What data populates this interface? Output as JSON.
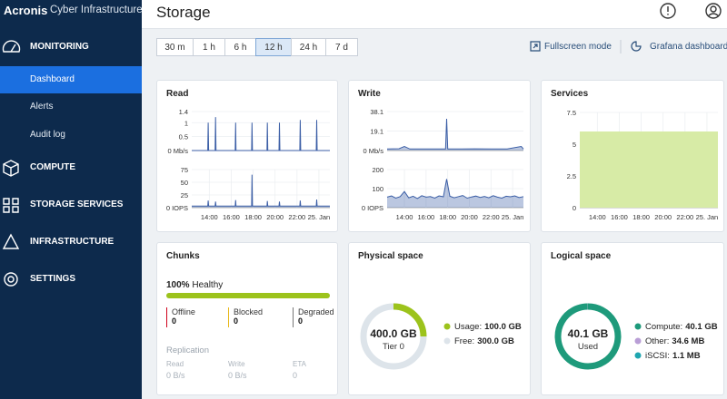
{
  "sidebar": {
    "brand": "Acronis",
    "product": "Cyber Infrastructure",
    "nav": [
      {
        "label": "MONITORING",
        "children": [
          {
            "label": "Dashboard",
            "active": true
          },
          {
            "label": "Alerts",
            "active": false
          },
          {
            "label": "Audit log",
            "active": false
          }
        ]
      },
      {
        "label": "COMPUTE"
      },
      {
        "label": "STORAGE SERVICES"
      },
      {
        "label": "INFRASTRUCTURE"
      },
      {
        "label": "SETTINGS"
      }
    ]
  },
  "header": {
    "title": "Storage"
  },
  "time_ranges": [
    {
      "label": "30 m",
      "selected": false
    },
    {
      "label": "1 h",
      "selected": false
    },
    {
      "label": "6 h",
      "selected": false
    },
    {
      "label": "12 h",
      "selected": true
    },
    {
      "label": "24 h",
      "selected": false
    },
    {
      "label": "7 d",
      "selected": false
    }
  ],
  "links": {
    "fullscreen": "Fullscreen mode",
    "grafana": "Grafana dashboard"
  },
  "panels": {
    "read": {
      "title": "Read",
      "charts": [
        {
          "type": "area",
          "xlim": [
            12.4,
            25
          ],
          "ylim": [
            0,
            1.4
          ],
          "yticks": [
            {
              "value": 0,
              "label": "0 Mb/s"
            },
            0.5,
            1,
            1.4
          ],
          "series": [
            {
              "color": "#3b5ea6",
              "x": [
                12.4,
                13.86,
                13.9,
                13.94,
                14.53,
                14.57,
                14.61,
                16.36,
                16.4,
                16.44,
                17.86,
                17.9,
                17.94,
                19.26,
                19.3,
                19.34,
                20.36,
                20.4,
                20.44,
                22.26,
                22.3,
                22.34,
                23.76,
                23.8,
                23.84,
                25
              ],
              "values": [
                0,
                0,
                1,
                0,
                0,
                1.2,
                0,
                0,
                1,
                0,
                0,
                1,
                0,
                0,
                1,
                0,
                0,
                1,
                0,
                0,
                1.1,
                0,
                0,
                1.1,
                0,
                0
              ]
            }
          ]
        },
        {
          "type": "area",
          "xlim": [
            12.4,
            25
          ],
          "ylim": [
            0,
            75
          ],
          "yticks": [
            {
              "value": 0,
              "label": "0 IOPS"
            },
            25,
            50,
            75
          ],
          "xticks": [
            {
              "value": 14,
              "label": "14:00"
            },
            {
              "value": 16,
              "label": "16:00"
            },
            {
              "value": 18,
              "label": "18:00"
            },
            {
              "value": 20,
              "label": "20:00"
            },
            {
              "value": 22,
              "label": "22:00"
            },
            {
              "value": 24,
              "label": "25. Jan"
            }
          ],
          "series": [
            {
              "color": "#3b5ea6",
              "x": [
                12.4,
                13.86,
                13.9,
                13.94,
                14.53,
                14.57,
                14.61,
                16.36,
                16.4,
                16.44,
                17.86,
                17.9,
                17.94,
                19.26,
                19.3,
                19.34,
                20.36,
                20.4,
                20.44,
                22.26,
                22.3,
                22.34,
                23.76,
                23.8,
                23.84,
                25
              ],
              "values": [
                3,
                3,
                14,
                3,
                3,
                12,
                3,
                3,
                15,
                3,
                3,
                65,
                3,
                3,
                13,
                3,
                3,
                12,
                3,
                3,
                14,
                3,
                3,
                16,
                3,
                3
              ]
            }
          ]
        }
      ]
    },
    "write": {
      "title": "Write",
      "charts": [
        {
          "type": "area",
          "xlim": [
            12.4,
            25
          ],
          "ylim": [
            0,
            38.1
          ],
          "yticks": [
            {
              "value": 0,
              "label": "0 Mb/s"
            },
            19.1,
            38.1
          ],
          "series": [
            {
              "color": "#3b5ea6",
              "x": [
                12.4,
                13.5,
                14.0,
                14.5,
                16,
                17.8,
                17.9,
                18.0,
                19,
                20.5,
                22,
                23.5,
                24.8,
                25
              ],
              "values": [
                1.5,
                1.8,
                4,
                1.5,
                1.6,
                1.6,
                31,
                1.6,
                1.5,
                1.7,
                1.5,
                1.6,
                4,
                1.5
              ]
            }
          ]
        },
        {
          "type": "area",
          "xlim": [
            12.4,
            25
          ],
          "ylim": [
            0,
            200
          ],
          "yticks": [
            {
              "value": 0,
              "label": "0 IOPS"
            },
            100,
            200
          ],
          "xticks": [
            {
              "value": 14,
              "label": "14:00"
            },
            {
              "value": 16,
              "label": "16:00"
            },
            {
              "value": 18,
              "label": "18:00"
            },
            {
              "value": 20,
              "label": "20:00"
            },
            {
              "value": 22,
              "label": "22:00"
            },
            {
              "value": 24,
              "label": "25. Jan"
            }
          ],
          "series": [
            {
              "color": "#3b5ea6",
              "x": [
                12.4,
                12.8,
                13.2,
                13.6,
                14.0,
                14.4,
                14.8,
                15.2,
                15.6,
                16.0,
                16.4,
                16.8,
                17.2,
                17.6,
                17.9,
                18.2,
                18.6,
                19.0,
                19.4,
                19.8,
                20.2,
                20.6,
                21.0,
                21.4,
                21.8,
                22.2,
                22.6,
                23.0,
                23.4,
                23.8,
                24.2,
                24.6,
                25
              ],
              "values": [
                55,
                62,
                50,
                58,
                85,
                52,
                60,
                48,
                63,
                55,
                58,
                50,
                62,
                57,
                150,
                60,
                52,
                58,
                64,
                50,
                56,
                61,
                54,
                59,
                52,
                63,
                55,
                50,
                60,
                57,
                62,
                53,
                58
              ]
            }
          ]
        }
      ]
    },
    "services": {
      "title": "Services",
      "charts": [
        {
          "type": "area",
          "xlim": [
            12.4,
            25
          ],
          "ylim": [
            0,
            7.5
          ],
          "yticks": [
            0,
            2.5,
            5,
            7.5
          ],
          "xticks": [
            {
              "value": 14,
              "label": "14:00"
            },
            {
              "value": 16,
              "label": "16:00"
            },
            {
              "value": 18,
              "label": "18:00"
            },
            {
              "value": 20,
              "label": "20:00"
            },
            {
              "value": 22,
              "label": "22:00"
            },
            {
              "value": 24,
              "label": "25. Jan"
            }
          ],
          "series": [
            {
              "color": "#d7eba6",
              "x": [
                12.4,
                25
              ],
              "values": [
                6,
                6
              ]
            }
          ]
        }
      ]
    },
    "chunks": {
      "title": "Chunks",
      "healthy": {
        "value": 100,
        "label": "100%"
      },
      "healthy_text": "Healthy",
      "bar_color": "#9cc31c",
      "stats": [
        {
          "name": "Offline",
          "value": 0,
          "color": "#d0021b"
        },
        {
          "name": "Blocked",
          "value": 0,
          "color": "#e8b81a"
        },
        {
          "name": "Degraded",
          "value": 0,
          "color": "#777777"
        }
      ],
      "replication": {
        "title": "Replication",
        "items": [
          {
            "name": "Read",
            "value": "0 B/s"
          },
          {
            "name": "Write",
            "value": "0 B/s"
          },
          {
            "name": "ETA",
            "value": 0
          }
        ]
      }
    },
    "physical": {
      "title": "Physical space",
      "type": "donut",
      "center_value": "400.0 GB",
      "center_text": "Tier 0",
      "items": [
        {
          "name": "Usage:",
          "value": 100,
          "value_label": "100.0 GB",
          "color": "#9cc31c"
        },
        {
          "name": "Free:",
          "value": 300,
          "value_label": "300.0 GB",
          "color": "#dde4ea"
        }
      ]
    },
    "logical": {
      "title": "Logical space",
      "type": "donut",
      "center_value": "40.1 GB",
      "center_text": "Used",
      "items": [
        {
          "name": "Compute:",
          "value": 40.1,
          "value_label": "40.1 GB",
          "color": "#1e9a7b"
        },
        {
          "name": "Other:",
          "value": 0.0346,
          "value_label": "34.6 MB",
          "color": "#b99ed6"
        },
        {
          "name": "iSCSI:",
          "value": 0.0011,
          "value_label": "1.1 MB",
          "color": "#1fa6b0"
        }
      ]
    }
  }
}
